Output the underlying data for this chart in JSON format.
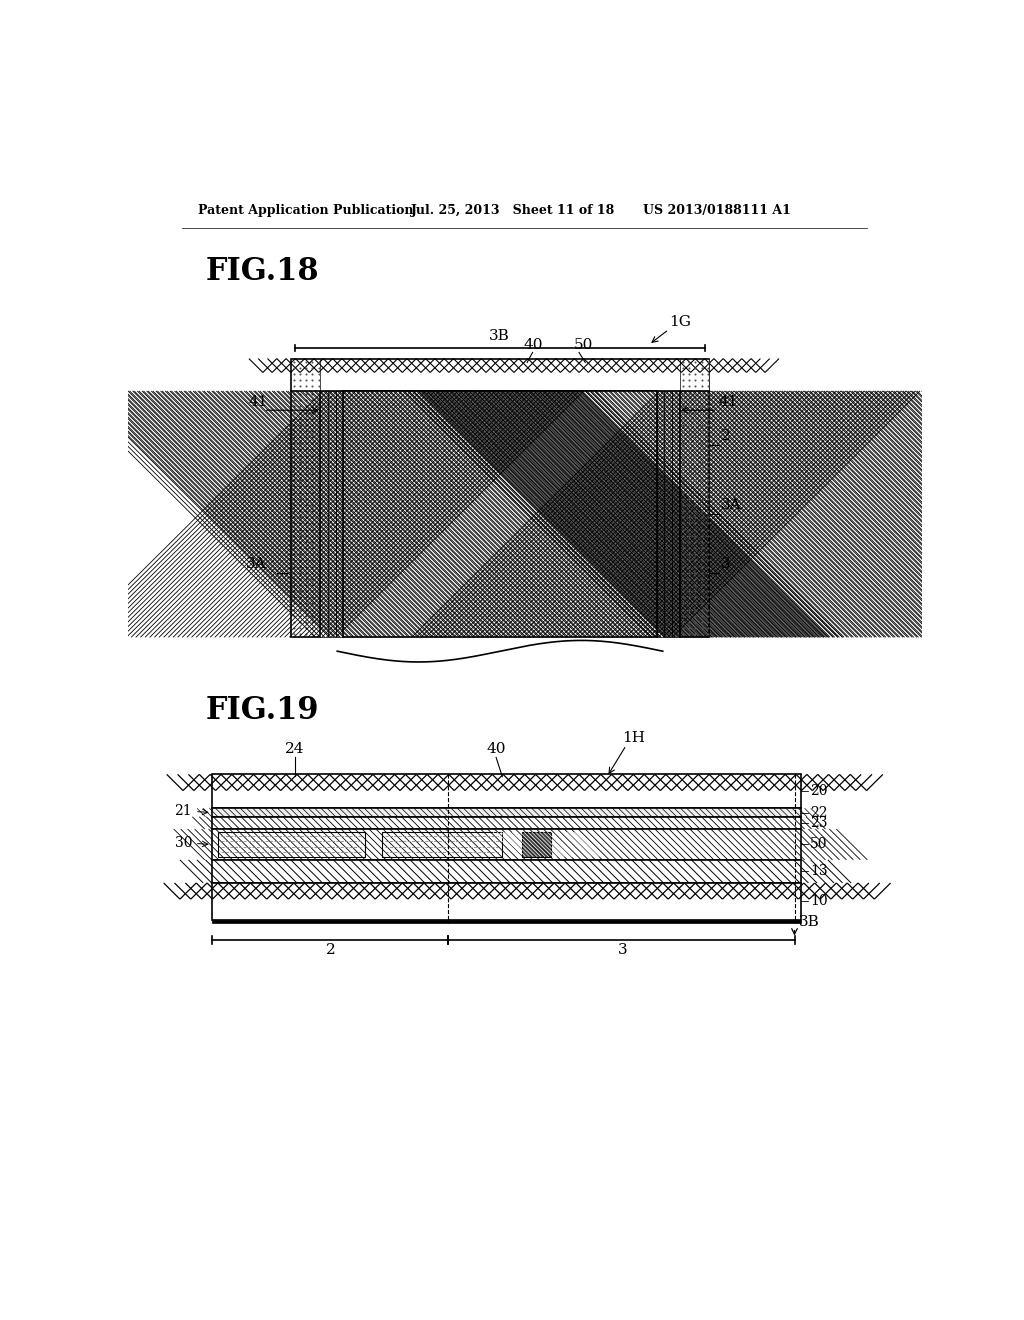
{
  "header_left": "Patent Application Publication",
  "header_mid": "Jul. 25, 2013   Sheet 11 of 18",
  "header_right": "US 2013/0188111 A1",
  "fig18_label": "FIG.18",
  "fig19_label": "FIG.19",
  "bg_color": "#ffffff",
  "line_color": "#000000"
}
